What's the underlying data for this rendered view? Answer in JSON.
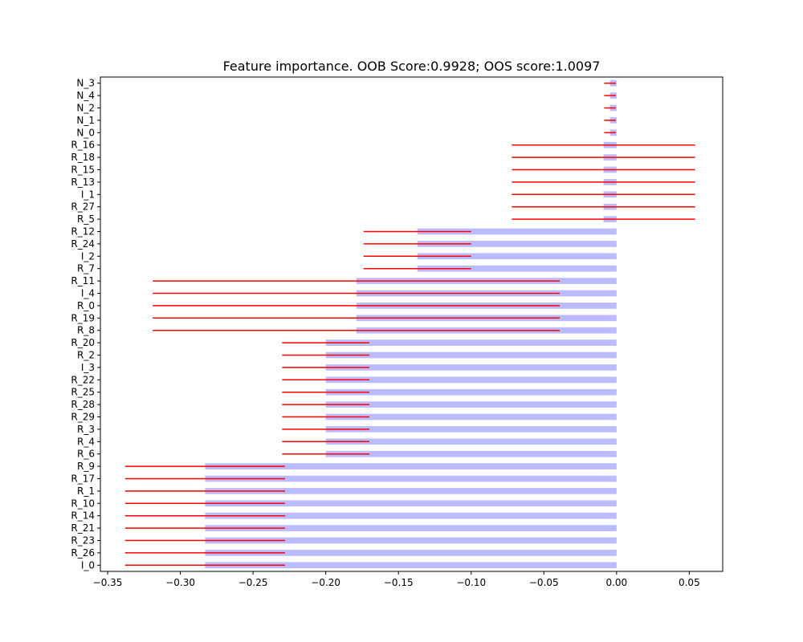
{
  "chart_data": {
    "type": "bar",
    "orientation": "horizontal",
    "title": "Feature importance. OOB Score:0.9928; OOS score:1.0097",
    "xlabel": "",
    "ylabel": "",
    "xlim": [
      -0.355,
      0.073
    ],
    "xticks": [
      -0.35,
      -0.3,
      -0.25,
      -0.2,
      -0.15,
      -0.1,
      -0.05,
      0.0,
      0.05
    ],
    "xtick_labels": [
      "−0.35",
      "−0.30",
      "−0.25",
      "−0.20",
      "−0.15",
      "−0.10",
      "−0.05",
      "0.00",
      "0.05"
    ],
    "grid": false,
    "bar_color": "#bbbbff",
    "error_color": "#ff0000",
    "categories": [
      "N_3",
      "N_4",
      "N_2",
      "N_1",
      "N_0",
      "R_16",
      "R_18",
      "R_15",
      "R_13",
      "I_1",
      "R_27",
      "R_5",
      "R_12",
      "R_24",
      "I_2",
      "R_7",
      "R_11",
      "I_4",
      "R_0",
      "R_19",
      "R_8",
      "R_20",
      "R_2",
      "I_3",
      "R_22",
      "R_25",
      "R_28",
      "R_29",
      "R_3",
      "R_4",
      "R_6",
      "R_9",
      "R_17",
      "R_1",
      "R_10",
      "R_14",
      "R_21",
      "R_23",
      "R_26",
      "I_0"
    ],
    "values": [
      -0.0045,
      -0.0045,
      -0.0045,
      -0.0045,
      -0.0045,
      -0.009,
      -0.009,
      -0.009,
      -0.009,
      -0.009,
      -0.009,
      -0.009,
      -0.137,
      -0.137,
      -0.137,
      -0.137,
      -0.179,
      -0.179,
      -0.179,
      -0.179,
      -0.179,
      -0.2,
      -0.2,
      -0.2,
      -0.2,
      -0.2,
      -0.2,
      -0.2,
      -0.2,
      -0.2,
      -0.2,
      -0.283,
      -0.283,
      -0.283,
      -0.283,
      -0.283,
      -0.283,
      -0.283,
      -0.283,
      -0.283
    ],
    "errors": [
      0.004,
      0.004,
      0.004,
      0.004,
      0.004,
      0.063,
      0.063,
      0.063,
      0.063,
      0.063,
      0.063,
      0.063,
      0.037,
      0.037,
      0.037,
      0.037,
      0.14,
      0.14,
      0.14,
      0.14,
      0.14,
      0.03,
      0.03,
      0.03,
      0.03,
      0.03,
      0.03,
      0.03,
      0.03,
      0.03,
      0.03,
      0.055,
      0.055,
      0.055,
      0.055,
      0.055,
      0.055,
      0.055,
      0.055,
      0.055
    ]
  }
}
